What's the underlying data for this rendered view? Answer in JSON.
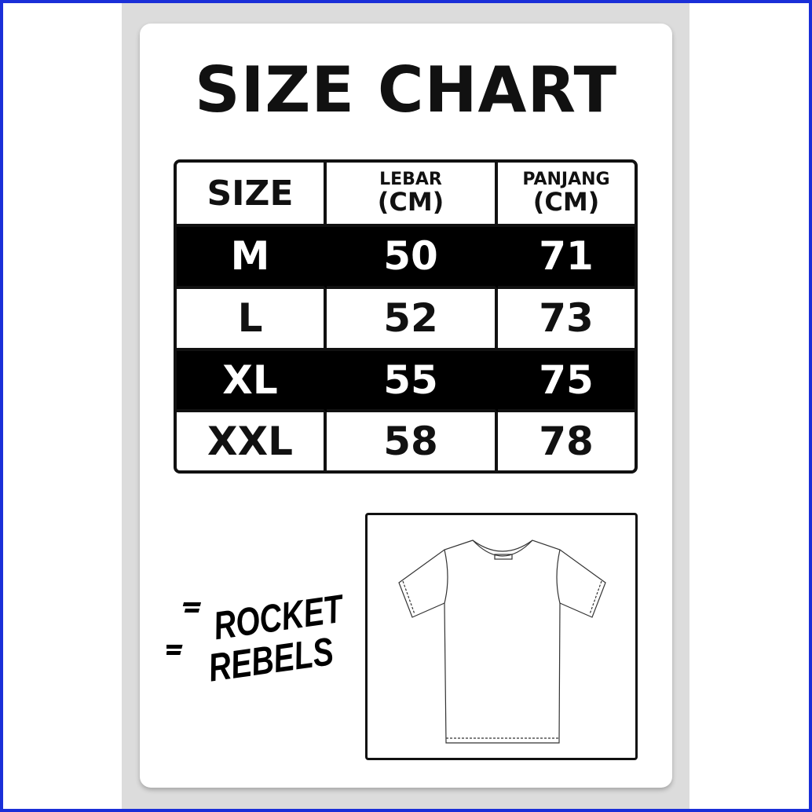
{
  "title": "SIZE CHART",
  "table": {
    "headers": [
      {
        "line1": "SIZE"
      },
      {
        "line1": "LEBAR",
        "line2": "(CM)"
      },
      {
        "line1": "PANJANG",
        "line2": "(CM)"
      }
    ],
    "rows": [
      {
        "size": "M",
        "lebar": "50",
        "panjang": "71",
        "style": "dark"
      },
      {
        "size": "L",
        "lebar": "52",
        "panjang": "73",
        "style": "light"
      },
      {
        "size": "XL",
        "lebar": "55",
        "panjang": "75",
        "style": "dark"
      },
      {
        "size": "XXL",
        "lebar": "58",
        "panjang": "78",
        "style": "light"
      }
    ]
  },
  "logo": {
    "line1": "ROCKET",
    "line2": "REBELS"
  },
  "colors": {
    "frame": "#1a2fd8",
    "panel": "#dcdcdc",
    "ink": "#111111"
  }
}
